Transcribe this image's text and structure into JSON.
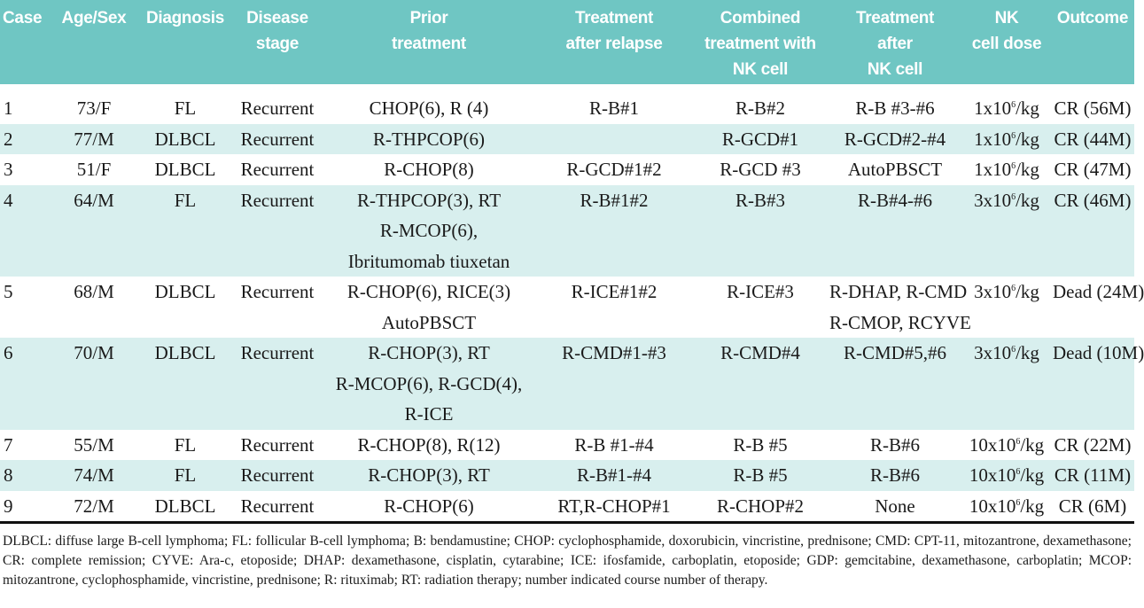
{
  "columns": [
    "Case",
    "Age/Sex",
    "Diagnosis",
    "Disease stage",
    "Prior treatment",
    "Treatment after relapse",
    "Combined treatment with NK cell",
    "Treatment after NK cell",
    "NK cell dose",
    "Outcome"
  ],
  "header": {
    "case": [
      "Case"
    ],
    "age_sex": [
      "Age/Sex"
    ],
    "diagnosis": [
      "Diagnosis"
    ],
    "disease_stage": [
      "Disease",
      "stage"
    ],
    "prior_treatment": [
      "Prior",
      "treatment"
    ],
    "treatment_after_relapse": [
      "Treatment",
      "after relapse"
    ],
    "combined_treatment": [
      "Combined",
      "treatment with",
      "NK cell"
    ],
    "treatment_after_nk": [
      "Treatment",
      "after",
      "NK cell"
    ],
    "nk_dose": [
      "NK",
      "cell dose"
    ],
    "outcome": [
      "Outcome"
    ]
  },
  "rows": [
    {
      "case": "1",
      "age_sex": "73/F",
      "diagnosis": "FL",
      "stage": "Recurrent",
      "prior": [
        "CHOP(6), R (4)"
      ],
      "relapse": [
        "R-B#1"
      ],
      "combined": [
        "R-B#2"
      ],
      "after_nk": [
        "R-B #3-#6"
      ],
      "dose": {
        "base": "1x10",
        "exp": "6",
        "unit": "/kg"
      },
      "outcome": "CR (56M)"
    },
    {
      "case": "2",
      "age_sex": "77/M",
      "diagnosis": "DLBCL",
      "stage": "Recurrent",
      "prior": [
        "R-THPCOP(6)"
      ],
      "relapse": [
        ""
      ],
      "combined": [
        "R-GCD#1"
      ],
      "after_nk": [
        "R-GCD#2-#4"
      ],
      "dose": {
        "base": "1x10",
        "exp": "6",
        "unit": "/kg"
      },
      "outcome": "CR (44M)"
    },
    {
      "case": "3",
      "age_sex": "51/F",
      "diagnosis": "DLBCL",
      "stage": "Recurrent",
      "prior": [
        "R-CHOP(8)"
      ],
      "relapse": [
        "R-GCD#1#2"
      ],
      "combined": [
        "R-GCD #3"
      ],
      "after_nk": [
        "AutoPBSCT"
      ],
      "dose": {
        "base": "1x10",
        "exp": "6",
        "unit": "/kg"
      },
      "outcome": "CR (47M)"
    },
    {
      "case": "4",
      "age_sex": "64/M",
      "diagnosis": "FL",
      "stage": "Recurrent",
      "prior": [
        "R-THPCOP(3), RT",
        "R-MCOP(6),",
        "Ibritumomab tiuxetan"
      ],
      "relapse": [
        "R-B#1#2"
      ],
      "combined": [
        "R-B#3"
      ],
      "after_nk": [
        "R-B#4-#6"
      ],
      "dose": {
        "base": "3x10",
        "exp": "6",
        "unit": "/kg"
      },
      "outcome": "CR (46M)"
    },
    {
      "case": "5",
      "age_sex": "68/M",
      "diagnosis": "DLBCL",
      "stage": "Recurrent",
      "prior": [
        "R-CHOP(6), RICE(3)",
        "AutoPBSCT"
      ],
      "relapse": [
        "R-ICE#1#2"
      ],
      "combined": [
        "R-ICE#3"
      ],
      "after_nk": [
        "R-DHAP, R-CMD",
        "R-CMOP, RCYVE"
      ],
      "dose": {
        "base": "3x10",
        "exp": "6",
        "unit": "/kg"
      },
      "outcome": "Dead (24M)"
    },
    {
      "case": "6",
      "age_sex": "70/M",
      "diagnosis": "DLBCL",
      "stage": "Recurrent",
      "prior": [
        "R-CHOP(3), RT",
        "R-MCOP(6), R-GCD(4),",
        "R-ICE"
      ],
      "relapse": [
        "R-CMD#1-#3"
      ],
      "combined": [
        "R-CMD#4"
      ],
      "after_nk": [
        "R-CMD#5,#6"
      ],
      "dose": {
        "base": "3x10",
        "exp": "6",
        "unit": "/kg"
      },
      "outcome": "Dead (10M)"
    },
    {
      "case": "7",
      "age_sex": "55/M",
      "diagnosis": "FL",
      "stage": "Recurrent",
      "prior": [
        "R-CHOP(8), R(12)"
      ],
      "relapse": [
        "R-B #1-#4"
      ],
      "combined": [
        "R-B #5"
      ],
      "after_nk": [
        "R-B#6"
      ],
      "dose": {
        "base": "10x10",
        "exp": "6",
        "unit": "/kg"
      },
      "outcome": "CR (22M)"
    },
    {
      "case": "8",
      "age_sex": "74/M",
      "diagnosis": "FL",
      "stage": "Recurrent",
      "prior": [
        "R-CHOP(3), RT"
      ],
      "relapse": [
        "R-B#1-#4"
      ],
      "combined": [
        "R-B #5"
      ],
      "after_nk": [
        "R-B#6"
      ],
      "dose": {
        "base": "10x10",
        "exp": "6",
        "unit": "/kg"
      },
      "outcome": "CR (11M)"
    },
    {
      "case": "9",
      "age_sex": "72/M",
      "diagnosis": "DLBCL",
      "stage": "Recurrent",
      "prior": [
        "R-CHOP(6)"
      ],
      "relapse": [
        "RT,R-CHOP#1"
      ],
      "combined": [
        "R-CHOP#2"
      ],
      "after_nk": [
        "None"
      ],
      "dose": {
        "base": "10x10",
        "exp": "6",
        "unit": "/kg"
      },
      "outcome": "CR (6M)"
    }
  ],
  "footnote": "DLBCL: diffuse large B-cell lymphoma; FL: follicular B-cell lymphoma; B: bendamustine; CHOP: cyclophosphamide, doxorubicin, vincristine, prednisone; CMD: CPT-11, mitozantrone, dexamethasone; CR: complete remission; CYVE: Ara-c, etoposide; DHAP: dexamethasone, cisplatin, cytarabine; ICE: ifosfamide, carboplatin, etoposide; GDP: gemcitabine, dexamethasone, carboplatin; MCOP: mitozantrone, cyclophosphamide, vincristine, prednisone; R: rituximab; RT: radiation therapy; number indicated course number of therapy.",
  "colors": {
    "header_bg": "#6fc6c3",
    "row_shade": "#d8efee",
    "header_text": "#ffffff"
  }
}
